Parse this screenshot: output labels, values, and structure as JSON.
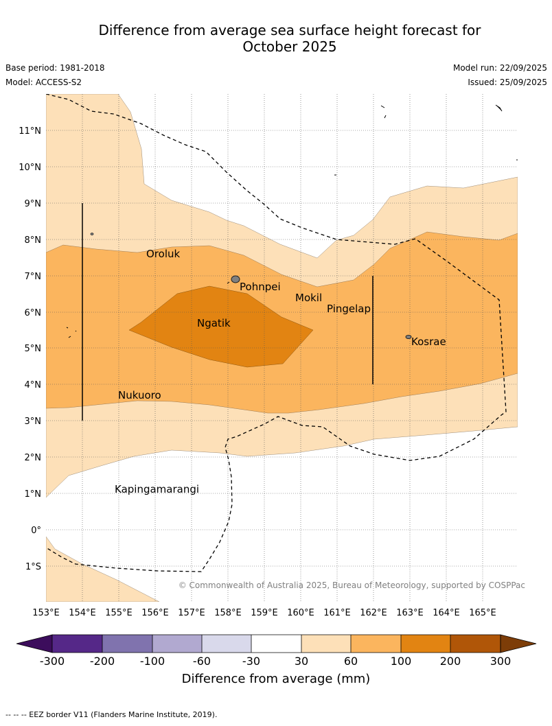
{
  "title": {
    "line1": "Difference from average sea surface height forecast for",
    "line2": "October 2025"
  },
  "meta": {
    "base_period": "Base period: 1981-2018",
    "model": "Model: ACCESS-S2",
    "model_run": "Model run: 22/09/2025",
    "issued": "Issued: 25/09/2025"
  },
  "axes": {
    "latitude_labels": [
      "11°N",
      "10°N",
      "9°N",
      "8°N",
      "7°N",
      "6°N",
      "5°N",
      "4°N",
      "3°N",
      "2°N",
      "1°N",
      "0°",
      "1°S"
    ],
    "longitude_labels": [
      "153°E",
      "154°E",
      "155°E",
      "156°E",
      "157°E",
      "158°E",
      "159°E",
      "160°E",
      "161°E",
      "162°E",
      "163°E",
      "164°E",
      "165°E"
    ],
    "lon_range": [
      153,
      166
    ],
    "lat_range": [
      -2,
      12
    ]
  },
  "places": [
    {
      "name": "Oroluk",
      "lon": 155.75,
      "lat": 7.65
    },
    {
      "name": "Pohnpei",
      "lon": 158.2,
      "lat": 6.9
    },
    {
      "name": "Mokil",
      "lon": 159.8,
      "lat": 6.65
    },
    {
      "name": "Pingelap",
      "lon": 160.7,
      "lat": 6.2
    },
    {
      "name": "Ngatik",
      "lon": 157.15,
      "lat": 5.75
    },
    {
      "name": "Kosrae",
      "lon": 162.95,
      "lat": 5.3
    },
    {
      "name": "Nukuoro",
      "lon": 154.95,
      "lat": 3.8
    },
    {
      "name": "Kapingamarangi",
      "lon": 154.8,
      "lat": 1.1
    }
  ],
  "copyright": "© Commonwealth of Australia 2025, Bureau of Meteorology, supported by COSPPac",
  "colorbar": {
    "ticks": [
      "-300",
      "-200",
      "-100",
      "-60",
      "-30",
      "30",
      "60",
      "100",
      "200",
      "300"
    ],
    "colors": [
      "#552888",
      "#8073ae",
      "#b1a9d0",
      "#d9d9eb",
      "#ffffff",
      "#fde0b8",
      "#fbb55e",
      "#e28412",
      "#b05608"
    ],
    "under_color": "#3c0d5c",
    "over_color": "#7d3d08",
    "label": "Difference from average (mm)"
  },
  "footnote": "--  --  -- EEZ border V11 (Flanders Marine Institute, 2019)."
}
